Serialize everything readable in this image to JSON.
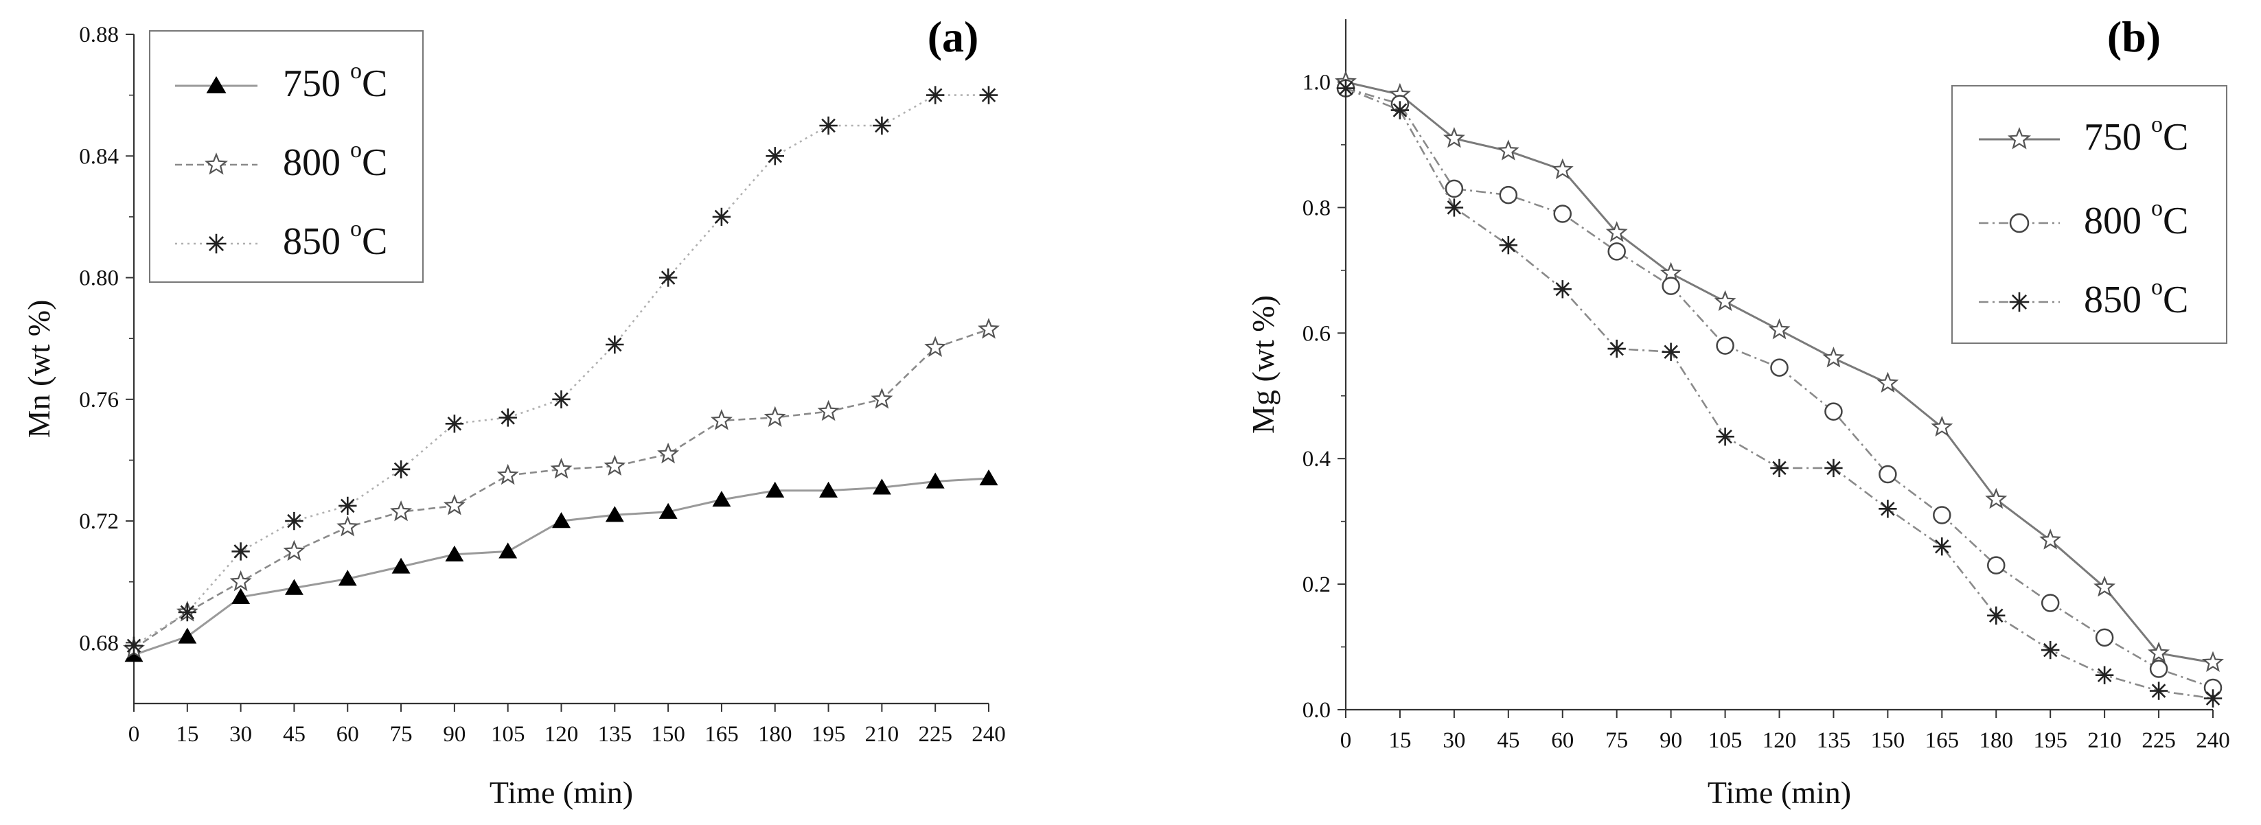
{
  "chart_data": [
    {
      "type": "line",
      "panel_label": "(a)",
      "xlabel": "Time (min)",
      "ylabel": "Mn (wt %)",
      "x": [
        0,
        15,
        30,
        45,
        60,
        75,
        90,
        105,
        120,
        135,
        150,
        165,
        180,
        195,
        210,
        225,
        240
      ],
      "x_ticks": [
        "0",
        "15",
        "30",
        "45",
        "60",
        "75",
        "90",
        "105",
        "120",
        "135",
        "150",
        "165",
        "180",
        "195",
        "210",
        "225",
        "240"
      ],
      "xlim": [
        0,
        240
      ],
      "ylim": [
        0.66,
        0.88
      ],
      "y_ticks": [
        "0.68",
        "0.72",
        "0.76",
        "0.80",
        "0.84",
        "0.88"
      ],
      "legend_position": "top-left",
      "series": [
        {
          "name": "750",
          "unit": "C",
          "sup": "o",
          "marker": "triangle",
          "style": "solid",
          "color": "#9a9a9a",
          "values": [
            0.676,
            0.682,
            0.695,
            0.698,
            0.701,
            0.705,
            0.709,
            0.71,
            0.72,
            0.722,
            0.723,
            0.727,
            0.73,
            0.73,
            0.731,
            0.733,
            0.734
          ]
        },
        {
          "name": "800",
          "unit": "C",
          "sup": "o",
          "marker": "star5",
          "style": "dashed",
          "color": "#8a8a8a",
          "values": [
            0.678,
            0.69,
            0.7,
            0.71,
            0.718,
            0.723,
            0.725,
            0.735,
            0.737,
            0.738,
            0.742,
            0.753,
            0.754,
            0.756,
            0.76,
            0.777,
            0.783
          ]
        },
        {
          "name": "850",
          "unit": "C",
          "sup": "o",
          "marker": "asterisk",
          "style": "dotted",
          "color": "#b0b0b0",
          "values": [
            0.679,
            0.69,
            0.71,
            0.72,
            0.725,
            0.737,
            0.752,
            0.754,
            0.76,
            0.778,
            0.8,
            0.82,
            0.84,
            0.85,
            0.85,
            0.86,
            0.86
          ]
        }
      ]
    },
    {
      "type": "line",
      "panel_label": "(b)",
      "xlabel": "Time (min)",
      "ylabel": "Mg (wt %)",
      "x": [
        0,
        15,
        30,
        45,
        60,
        75,
        90,
        105,
        120,
        135,
        150,
        165,
        180,
        195,
        210,
        225,
        240
      ],
      "x_ticks": [
        "0",
        "15",
        "30",
        "45",
        "60",
        "75",
        "90",
        "105",
        "120",
        "135",
        "150",
        "165",
        "180",
        "195",
        "210",
        "225",
        "240"
      ],
      "xlim": [
        0,
        240
      ],
      "ylim": [
        0,
        1.1
      ],
      "y_ticks": [
        "0.0",
        "0.2",
        "0.4",
        "0.6",
        "0.8",
        "1.0"
      ],
      "legend_position": "top-right",
      "series": [
        {
          "name": "750",
          "unit": "C",
          "sup": "o",
          "marker": "star5",
          "style": "solid",
          "color": "#7a7a7a",
          "values": [
            1.0,
            0.98,
            0.91,
            0.89,
            0.86,
            0.76,
            0.695,
            0.65,
            0.605,
            0.56,
            0.52,
            0.45,
            0.335,
            0.27,
            0.195,
            0.09,
            0.075
          ]
        },
        {
          "name": "800",
          "unit": "C",
          "sup": "o",
          "marker": "circle",
          "style": "dashdot",
          "color": "#8a8a8a",
          "values": [
            0.99,
            0.965,
            0.83,
            0.82,
            0.79,
            0.73,
            0.675,
            0.58,
            0.545,
            0.475,
            0.375,
            0.31,
            0.23,
            0.17,
            0.115,
            0.065,
            0.035
          ]
        },
        {
          "name": "850",
          "unit": "C",
          "sup": "o",
          "marker": "asterisk",
          "style": "dashdot",
          "color": "#8a8a8a",
          "values": [
            0.99,
            0.955,
            0.8,
            0.74,
            0.67,
            0.575,
            0.57,
            0.435,
            0.385,
            0.385,
            0.32,
            0.26,
            0.15,
            0.095,
            0.055,
            0.03,
            0.018
          ]
        }
      ]
    }
  ]
}
